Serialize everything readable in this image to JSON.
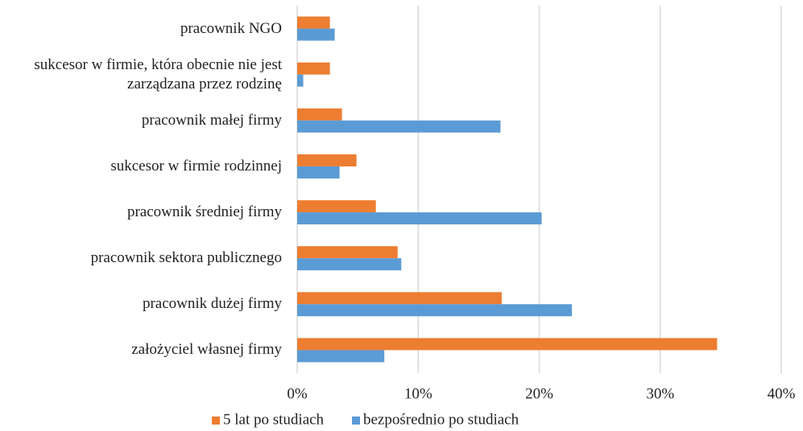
{
  "chart_data": {
    "type": "bar",
    "orientation": "horizontal",
    "categories": [
      "pracownik NGO",
      "sukcesor w firmie, która obecnie nie jest\nzarządzana przez rodzinę",
      "pracownik małej firmy",
      "sukcesor w firmie rodzinnej",
      "pracownik średniej firmy",
      "pracownik sektora publicznego",
      "pracownik dużej firmy",
      "założyciel własnej firmy"
    ],
    "series": [
      {
        "name": "5 lat po studiach",
        "color": "#ed7d31",
        "values": [
          2.7,
          2.7,
          3.7,
          4.9,
          6.5,
          8.3,
          16.9,
          34.7
        ]
      },
      {
        "name": "bezpośrednio po studiach",
        "color": "#5b9bd5",
        "values": [
          3.1,
          0.5,
          16.8,
          3.5,
          20.2,
          8.6,
          22.7,
          7.2
        ]
      }
    ],
    "xlim": [
      0,
      40
    ],
    "xticks": [
      {
        "value": 0,
        "label": "0%"
      },
      {
        "value": 10,
        "label": "10%"
      },
      {
        "value": 20,
        "label": "20%"
      },
      {
        "value": 30,
        "label": "30%"
      },
      {
        "value": 40,
        "label": "40%"
      }
    ],
    "grid": true,
    "legend": "bottom"
  }
}
